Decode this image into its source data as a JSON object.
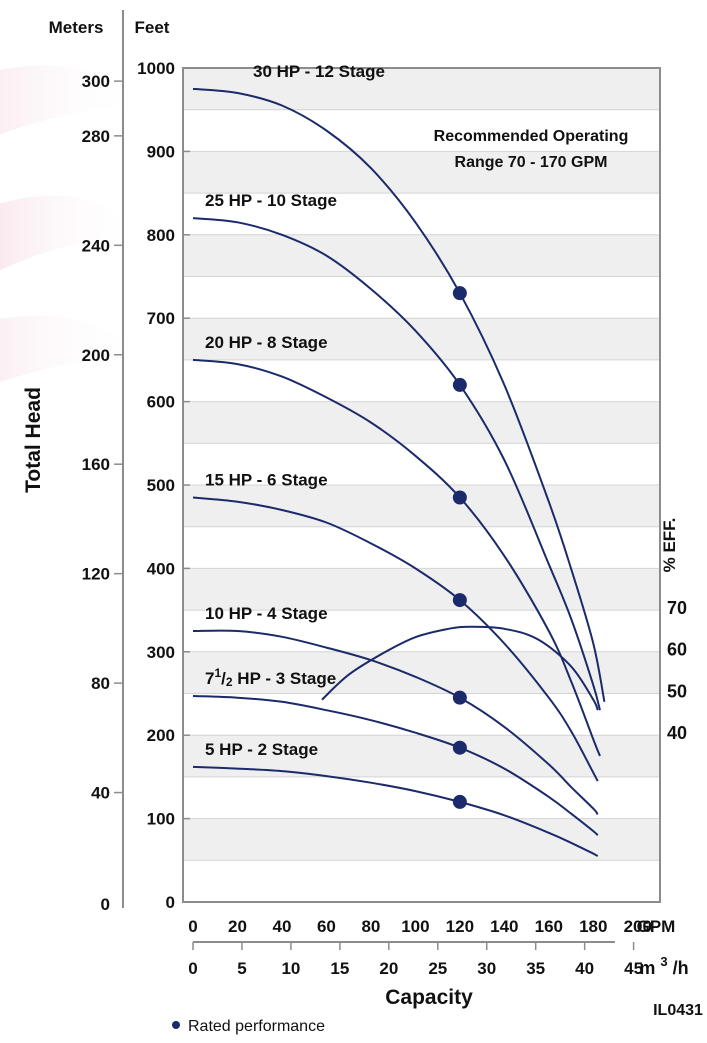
{
  "chart_data": {
    "type": "line",
    "title": "",
    "annotation": {
      "line1": "Recommended Operating",
      "line2": "Range 70 - 170 GPM"
    },
    "left_axis_title": "Total Head",
    "meters_axis": {
      "header": "Meters",
      "ticks": [
        "0",
        "40",
        "80",
        "120",
        "160",
        "200",
        "240",
        "280",
        "300"
      ],
      "tick_values_m": [
        0,
        40,
        80,
        120,
        160,
        200,
        240,
        280,
        300
      ]
    },
    "feet_axis": {
      "header": "Feet",
      "ticks": [
        "0",
        "100",
        "200",
        "300",
        "400",
        "500",
        "600",
        "700",
        "800",
        "900",
        "1000"
      ],
      "ylim": [
        0,
        1000
      ],
      "unit": "ft"
    },
    "gpm_axis": {
      "ticks": [
        "0",
        "20",
        "40",
        "60",
        "80",
        "100",
        "120",
        "140",
        "160",
        "180",
        "200"
      ],
      "unit_label": "GPM",
      "xlim": [
        0,
        210
      ]
    },
    "m3h_axis": {
      "ticks": [
        "0",
        "5",
        "10",
        "15",
        "20",
        "25",
        "30",
        "35",
        "40",
        "45"
      ],
      "unit_main": "m",
      "unit_sup": "3",
      "unit_tail": "/h"
    },
    "x_axis_title": "Capacity",
    "eff_axis": {
      "title": "% EFF.",
      "ticks": [
        "70",
        "60",
        "50",
        "40"
      ]
    },
    "legend": {
      "marker_label": "Rated performance"
    },
    "figure_code": "IL0431",
    "series": [
      {
        "name": "30 HP - 12 Stage",
        "label_parts": [
          "30 HP - 12 Stage"
        ],
        "x": [
          0,
          20,
          40,
          60,
          80,
          100,
          120,
          140,
          160,
          170,
          180,
          185
        ],
        "y": [
          975,
          970,
          955,
          925,
          880,
          815,
          730,
          620,
          480,
          400,
          310,
          240
        ],
        "rated": {
          "x": 120,
          "y": 730
        }
      },
      {
        "name": "25 HP - 10 Stage",
        "label_parts": [
          "25 HP - 10 Stage"
        ],
        "x": [
          0,
          20,
          40,
          60,
          80,
          100,
          120,
          140,
          160,
          170,
          180,
          183
        ],
        "y": [
          820,
          815,
          800,
          775,
          735,
          685,
          620,
          530,
          405,
          340,
          260,
          230
        ],
        "rated": {
          "x": 120,
          "y": 620
        }
      },
      {
        "name": "20 HP - 8 Stage",
        "label_parts": [
          "20 HP - 8 Stage"
        ],
        "x": [
          0,
          20,
          40,
          60,
          80,
          100,
          120,
          140,
          160,
          170,
          180,
          183
        ],
        "y": [
          650,
          645,
          630,
          605,
          575,
          535,
          485,
          415,
          325,
          265,
          195,
          175
        ],
        "rated": {
          "x": 120,
          "y": 485
        }
      },
      {
        "name": "15 HP - 6 Stage",
        "label_parts": [
          "15 HP - 6 Stage"
        ],
        "x": [
          0,
          20,
          40,
          60,
          80,
          100,
          120,
          140,
          160,
          170,
          180,
          182
        ],
        "y": [
          485,
          480,
          470,
          455,
          430,
          400,
          362,
          310,
          245,
          205,
          155,
          145
        ],
        "rated": {
          "x": 120,
          "y": 362
        }
      },
      {
        "name": "10 HP - 4 Stage",
        "label_parts": [
          "10 HP - 4 Stage"
        ],
        "x": [
          0,
          20,
          40,
          60,
          80,
          100,
          120,
          140,
          160,
          170,
          180,
          182
        ],
        "y": [
          325,
          325,
          318,
          305,
          290,
          270,
          245,
          210,
          165,
          138,
          112,
          105
        ],
        "rated": {
          "x": 120,
          "y": 245
        }
      },
      {
        "name": "7 1/2 HP - 3 Stage",
        "label_parts": [
          "7",
          "1",
          "/",
          "2",
          " HP - 3 Stage"
        ],
        "x": [
          0,
          20,
          40,
          60,
          80,
          100,
          120,
          140,
          160,
          170,
          180,
          182
        ],
        "y": [
          247,
          245,
          240,
          230,
          218,
          203,
          185,
          160,
          126,
          106,
          85,
          80
        ],
        "rated": {
          "x": 120,
          "y": 185
        }
      },
      {
        "name": "5 HP - 2 Stage",
        "label_parts": [
          "5 HP - 2 Stage"
        ],
        "x": [
          0,
          20,
          40,
          60,
          80,
          100,
          120,
          140,
          160,
          170,
          180,
          182
        ],
        "y": [
          162,
          160,
          157,
          151,
          143,
          133,
          120,
          104,
          83,
          71,
          58,
          55
        ],
        "rated": {
          "x": 120,
          "y": 120
        }
      }
    ],
    "efficiency_curve": {
      "x": [
        58,
        70,
        85,
        100,
        115,
        125,
        140,
        155,
        170,
        180,
        182
      ],
      "eff": [
        48,
        54,
        59,
        63,
        65,
        65.5,
        65,
        62.5,
        56,
        48,
        45.5
      ]
    }
  }
}
